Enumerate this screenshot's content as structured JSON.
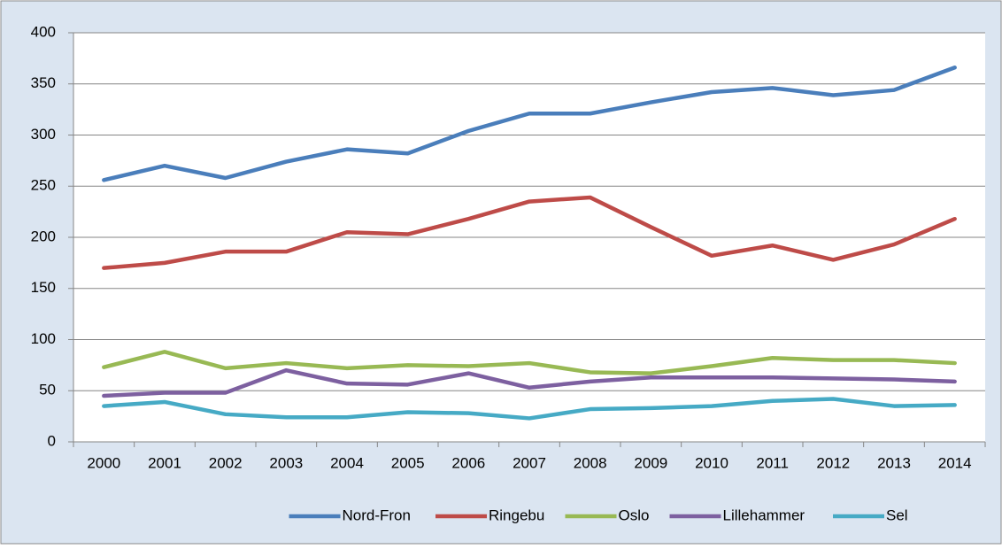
{
  "chart_data": {
    "type": "line",
    "categories": [
      "2000",
      "2001",
      "2002",
      "2003",
      "2004",
      "2005",
      "2006",
      "2007",
      "2008",
      "2009",
      "2010",
      "2011",
      "2012",
      "2013",
      "2014"
    ],
    "series": [
      {
        "name": "Nord-Fron",
        "color": "#4a7ebb",
        "values": [
          256,
          270,
          258,
          274,
          286,
          282,
          304,
          321,
          321,
          332,
          342,
          346,
          339,
          344,
          366
        ]
      },
      {
        "name": "Ringebu",
        "color": "#be4b48",
        "values": [
          170,
          175,
          186,
          186,
          205,
          203,
          218,
          235,
          239,
          210,
          182,
          192,
          178,
          193,
          218
        ]
      },
      {
        "name": "Oslo",
        "color": "#98b954",
        "values": [
          73,
          88,
          72,
          77,
          72,
          75,
          74,
          77,
          68,
          67,
          74,
          82,
          80,
          80,
          77
        ]
      },
      {
        "name": "Lillehammer",
        "color": "#7d60a0",
        "values": [
          45,
          48,
          48,
          70,
          57,
          56,
          67,
          53,
          59,
          63,
          63,
          63,
          62,
          61,
          59
        ]
      },
      {
        "name": "Sel",
        "color": "#46aac5",
        "values": [
          35,
          39,
          27,
          24,
          24,
          29,
          28,
          23,
          32,
          33,
          35,
          40,
          42,
          35,
          36
        ]
      }
    ],
    "ylim": [
      0,
      400
    ],
    "yticks": [
      0,
      50,
      100,
      150,
      200,
      250,
      300,
      350,
      400
    ],
    "grid": true,
    "legend": "bottom"
  }
}
